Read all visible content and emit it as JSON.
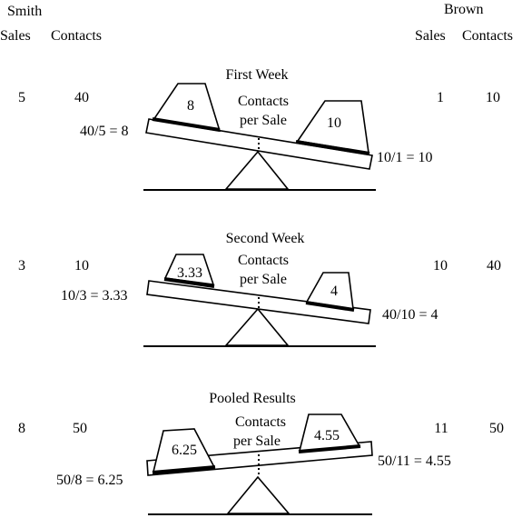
{
  "smith": {
    "name": "Smith",
    "sales_label": "Sales",
    "contacts_label": "Contacts"
  },
  "brown": {
    "name": "Brown",
    "sales_label": "Sales",
    "contacts_label": "Contacts"
  },
  "panels": [
    {
      "title": "First Week",
      "center_label_1": "Contacts",
      "center_label_2": "per Sale",
      "smith_sales": "5",
      "smith_contacts": "40",
      "brown_sales": "1",
      "brown_contacts": "10",
      "left_formula": "40/5 = 8",
      "right_formula": "10/1 = 10",
      "left_weight": "8",
      "right_weight": "10"
    },
    {
      "title": "Second Week",
      "center_label_1": "Contacts",
      "center_label_2": "per Sale",
      "smith_sales": "3",
      "smith_contacts": "10",
      "brown_sales": "10",
      "brown_contacts": "40",
      "left_formula": "10/3 = 3.33",
      "right_formula": "40/10 = 4",
      "left_weight": "3.33",
      "right_weight": "4"
    },
    {
      "title": "Pooled Results",
      "center_label_1": "Contacts",
      "center_label_2": "per Sale",
      "smith_sales": "8",
      "smith_contacts": "50",
      "brown_sales": "11",
      "brown_contacts": "50",
      "left_formula": "50/8 = 6.25",
      "right_formula": "50/11 = 4.55",
      "left_weight": "6.25",
      "right_weight": "4.55"
    }
  ]
}
